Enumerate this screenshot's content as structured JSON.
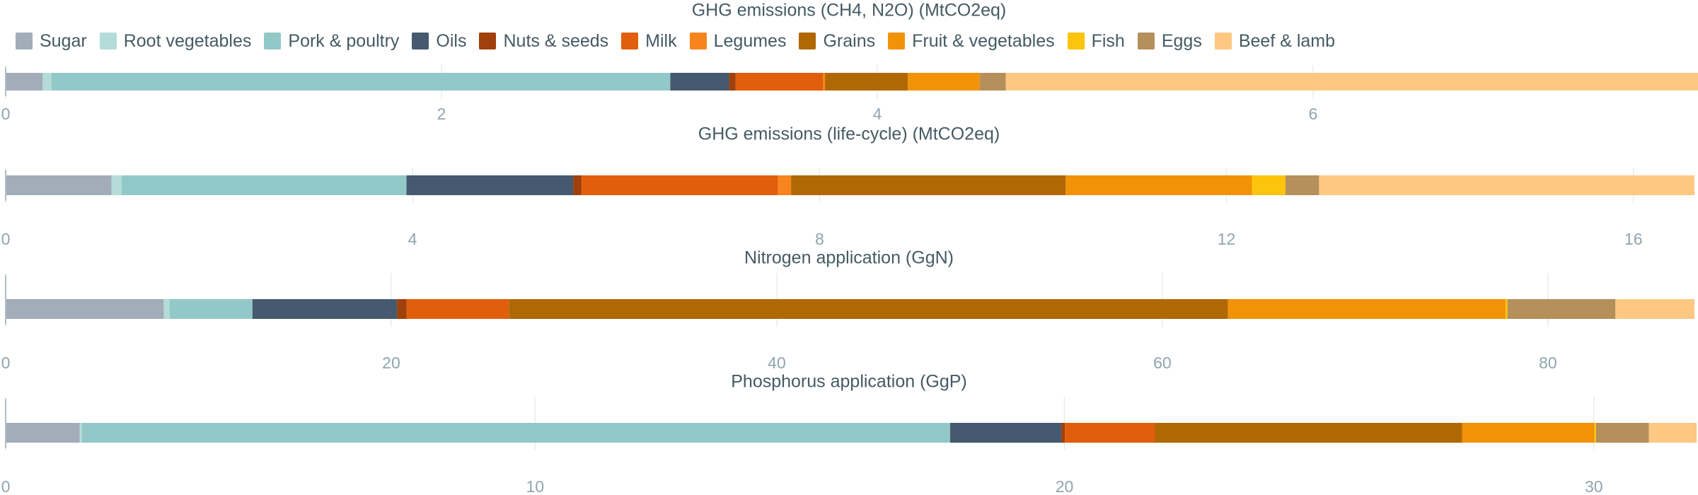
{
  "legend": {
    "placement": "top-left",
    "items": [
      {
        "label": "Sugar",
        "color": "#a2adb9"
      },
      {
        "label": "Root vegetables",
        "color": "#b3dcd9"
      },
      {
        "label": "Pork & poultry",
        "color": "#93c8c8"
      },
      {
        "label": "Oils",
        "color": "#455a6e"
      },
      {
        "label": "Nuts & seeds",
        "color": "#a0400a"
      },
      {
        "label": "Milk",
        "color": "#e05e0c"
      },
      {
        "label": "Legumes",
        "color": "#f7841c"
      },
      {
        "label": "Grains",
        "color": "#b06805"
      },
      {
        "label": "Fruit & vegetables",
        "color": "#f29207"
      },
      {
        "label": "Fish",
        "color": "#fcc40c"
      },
      {
        "label": "Eggs",
        "color": "#b5905a"
      },
      {
        "label": "Beef & lamb",
        "color": "#fdc882"
      }
    ]
  },
  "chart_data": [
    {
      "type": "bar",
      "orientation": "horizontal",
      "stacked": true,
      "title": "GHG emissions (CH4, N2O) (MtCO2eq)",
      "xlim": [
        0,
        7.75
      ],
      "xticks": [
        "0",
        "2",
        "4",
        "6"
      ],
      "grid": true,
      "series": [
        {
          "name": "Sugar",
          "value": 0.17
        },
        {
          "name": "Root vegetables",
          "value": 0.04
        },
        {
          "name": "Pork & poultry",
          "value": 2.84
        },
        {
          "name": "Oils",
          "value": 0.27
        },
        {
          "name": "Nuts & seeds",
          "value": 0.03
        },
        {
          "name": "Milk",
          "value": 0.4
        },
        {
          "name": "Legumes",
          "value": 0.01
        },
        {
          "name": "Grains",
          "value": 0.38
        },
        {
          "name": "Fruit & vegetables",
          "value": 0.33
        },
        {
          "name": "Fish",
          "value": 0.0
        },
        {
          "name": "Eggs",
          "value": 0.12
        },
        {
          "name": "Beef & lamb",
          "value": 3.27
        }
      ]
    },
    {
      "type": "bar",
      "orientation": "horizontal",
      "stacked": true,
      "title": "GHG emissions (life-cycle) (MtCO2eq)",
      "xlim": [
        0,
        16.6
      ],
      "xticks": [
        "0",
        "4",
        "8",
        "12",
        "16"
      ],
      "grid": true,
      "series": [
        {
          "name": "Sugar",
          "value": 1.04
        },
        {
          "name": "Root vegetables",
          "value": 0.1
        },
        {
          "name": "Pork & poultry",
          "value": 2.8
        },
        {
          "name": "Oils",
          "value": 1.64
        },
        {
          "name": "Nuts & seeds",
          "value": 0.08
        },
        {
          "name": "Milk",
          "value": 1.93
        },
        {
          "name": "Legumes",
          "value": 0.13
        },
        {
          "name": "Grains",
          "value": 2.7
        },
        {
          "name": "Fruit & vegetables",
          "value": 1.83
        },
        {
          "name": "Fish",
          "value": 0.33
        },
        {
          "name": "Eggs",
          "value": 0.33
        },
        {
          "name": "Beef & lamb",
          "value": 3.69
        }
      ]
    },
    {
      "type": "bar",
      "orientation": "horizontal",
      "stacked": true,
      "title": "Nitrogen application (GgN)",
      "xlim": [
        0,
        87.6
      ],
      "xticks": [
        "0",
        "20",
        "40",
        "60",
        "80"
      ],
      "grid": true,
      "series": [
        {
          "name": "Sugar",
          "value": 8.2
        },
        {
          "name": "Root vegetables",
          "value": 0.3
        },
        {
          "name": "Pork & poultry",
          "value": 4.3
        },
        {
          "name": "Oils",
          "value": 7.5
        },
        {
          "name": "Nuts & seeds",
          "value": 0.5
        },
        {
          "name": "Milk",
          "value": 5.3
        },
        {
          "name": "Legumes",
          "value": 0.0
        },
        {
          "name": "Grains",
          "value": 37.3
        },
        {
          "name": "Fruit & vegetables",
          "value": 14.4
        },
        {
          "name": "Fish",
          "value": 0.1
        },
        {
          "name": "Eggs",
          "value": 5.6
        },
        {
          "name": "Beef & lamb",
          "value": 4.1
        }
      ]
    },
    {
      "type": "bar",
      "orientation": "horizontal",
      "stacked": true,
      "title": "Phosphorus application (GgP)",
      "xlim": [
        0,
        31.9
      ],
      "xticks": [
        "0",
        "10",
        "20",
        "30"
      ],
      "grid": true,
      "series": [
        {
          "name": "Sugar",
          "value": 1.4
        },
        {
          "name": "Root vegetables",
          "value": 0.04
        },
        {
          "name": "Pork & poultry",
          "value": 16.4
        },
        {
          "name": "Oils",
          "value": 2.1
        },
        {
          "name": "Nuts & seeds",
          "value": 0.07
        },
        {
          "name": "Milk",
          "value": 1.7
        },
        {
          "name": "Legumes",
          "value": 0.0
        },
        {
          "name": "Grains",
          "value": 5.8
        },
        {
          "name": "Fruit & vegetables",
          "value": 2.5
        },
        {
          "name": "Fish",
          "value": 0.03
        },
        {
          "name": "Eggs",
          "value": 1.0
        },
        {
          "name": "Beef & lamb",
          "value": 0.9
        }
      ]
    }
  ]
}
